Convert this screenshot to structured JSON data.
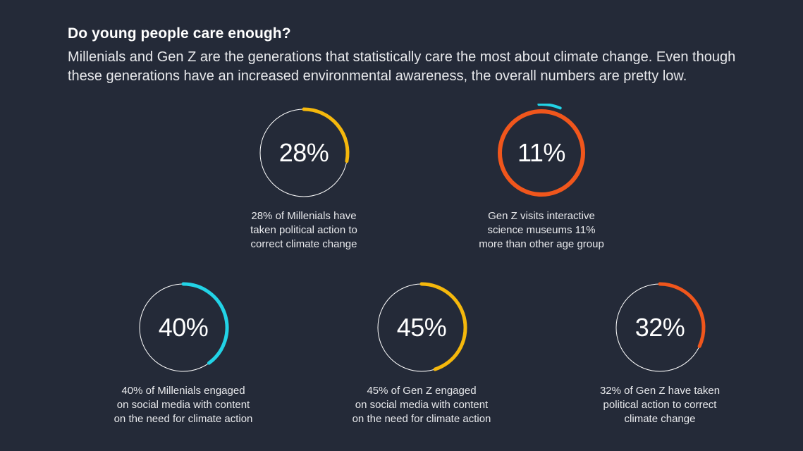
{
  "header": {
    "title": "Do young people care enough?",
    "subtitle": "Millenials and Gen Z are the generations that statistically care the most about climate change. Even though these generations have an increased environmental awareness, the overall numbers are pretty low."
  },
  "colors": {
    "background": "#242a38",
    "yellow": "#f5b80c",
    "orange": "#f0561c",
    "cyan": "#22d3e6",
    "track": "#ffffff"
  },
  "chart_data": {
    "type": "donut",
    "title": "Do young people care enough?",
    "items": [
      {
        "value": 28,
        "label": "28%",
        "caption": "28% of Millenials have\ntaken political action to\ncorrect climate change",
        "color": "#f5b80c",
        "style": "arc"
      },
      {
        "value": 11,
        "label": "11%",
        "caption": "Gen Z visits interactive\nscience museums 11%\nmore than other age group",
        "color": "#22d3e6",
        "base_color": "#f0561c",
        "style": "ring-plus-outer-arc"
      },
      {
        "value": 40,
        "label": "40%",
        "caption": "40% of Millenials engaged\non social media with content\non the need for climate action",
        "color": "#22d3e6",
        "style": "arc"
      },
      {
        "value": 45,
        "label": "45%",
        "caption": "45% of Gen Z engaged\non social media with content\non the need for climate action",
        "color": "#f5b80c",
        "style": "arc"
      },
      {
        "value": 32,
        "label": "32%",
        "caption": "32% of Gen Z have taken\npolitical action to correct\nclimate change",
        "color": "#f0561c",
        "style": "arc"
      }
    ]
  }
}
